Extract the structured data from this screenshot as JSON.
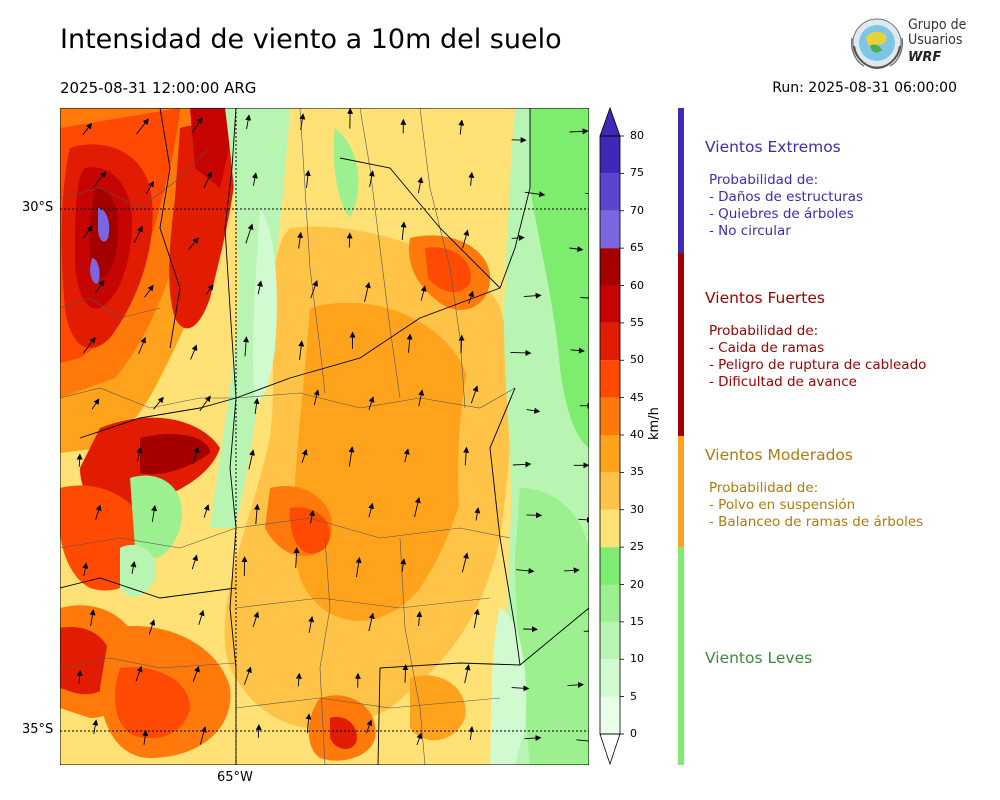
{
  "title": "Intensidad de viento a 10m del suelo",
  "valid_time": "2025-08-31 12:00:00 ARG",
  "run_time": "Run: 2025-08-31 06:00:00",
  "logo": {
    "line1": "Grupo de",
    "line2": "Usuarios",
    "line3": "WRF",
    "icon": "globe-emblem-icon"
  },
  "map": {
    "lat_labels": [
      "30°S",
      "35°S"
    ],
    "lon_labels": [
      "65°W"
    ],
    "icon": "wind-arrow-icon"
  },
  "colorbar": {
    "unit": "km/h",
    "ticks": [
      "80",
      "75",
      "70",
      "65",
      "60",
      "55",
      "50",
      "45",
      "40",
      "35",
      "30",
      "25",
      "20",
      "15",
      "10",
      "5",
      "0"
    ],
    "bands": [
      {
        "from": 0,
        "to": 5,
        "color": "#eaffea"
      },
      {
        "from": 5,
        "to": 10,
        "color": "#d2fad0"
      },
      {
        "from": 10,
        "to": 15,
        "color": "#b8f5b2"
      },
      {
        "from": 15,
        "to": 20,
        "color": "#9cf08f"
      },
      {
        "from": 20,
        "to": 25,
        "color": "#7eec6f"
      },
      {
        "from": 25,
        "to": 30,
        "color": "#ffe176"
      },
      {
        "from": 30,
        "to": 35,
        "color": "#ffc347"
      },
      {
        "from": 35,
        "to": 40,
        "color": "#ffa21c"
      },
      {
        "from": 40,
        "to": 45,
        "color": "#ff7a0a"
      },
      {
        "from": 45,
        "to": 50,
        "color": "#ff4a04"
      },
      {
        "from": 50,
        "to": 55,
        "color": "#e21c03"
      },
      {
        "from": 55,
        "to": 60,
        "color": "#c60402"
      },
      {
        "from": 60,
        "to": 65,
        "color": "#a50000"
      },
      {
        "from": 65,
        "to": 70,
        "color": "#7a66e0"
      },
      {
        "from": 70,
        "to": 75,
        "color": "#5a45d0"
      },
      {
        "from": 75,
        "to": 80,
        "color": "#3f28b8"
      }
    ]
  },
  "categories": [
    {
      "title": "Vientos Extremos",
      "color": "#3f2ab8",
      "lines": [
        "Probabilidad de:",
        "- Daños de estructuras",
        "- Quiebres de árboles",
        "- No circular"
      ]
    },
    {
      "title": "Vientos Fuertes",
      "color": "#a00000",
      "lines": [
        "Probabilidad de:",
        "- Caida de ramas",
        "- Peligro de ruptura de cableado",
        "- Dificultad de avance"
      ]
    },
    {
      "title": "Vientos Moderados",
      "color": "#b07a10",
      "bar_color": "#ffa21c",
      "lines": [
        "Probabilidad de:",
        "- Polvo en suspensión",
        "- Balanceo de ramas de árboles"
      ]
    },
    {
      "title": "Vientos Leves",
      "color": "#3a8a3a",
      "bar_color": "#7eec6f",
      "lines": []
    }
  ]
}
